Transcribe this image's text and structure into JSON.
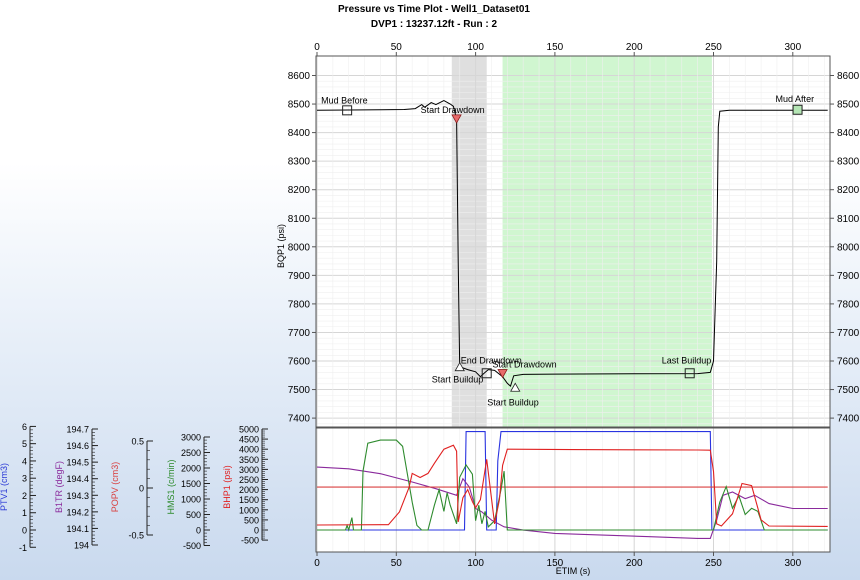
{
  "chart_data": {
    "type": "line",
    "title": "Pressure vs Time Plot - Well1_Dataset01",
    "subtitle": "DVP1 : 13237.12ft - Run : 2",
    "xlabel": "ETIM (s)",
    "xlim": [
      0,
      322
    ],
    "x_ticks": [
      0,
      50,
      100,
      150,
      200,
      250,
      300
    ],
    "main": {
      "ylabel": "BQP1 (psi)",
      "ylim": [
        7320,
        8660
      ],
      "y_ticks": [
        7400,
        7500,
        7600,
        7700,
        7800,
        7900,
        8000,
        8100,
        8200,
        8300,
        8400,
        8500,
        8600
      ],
      "grid": true,
      "shaded_regions": [
        {
          "x0": 85,
          "x1": 107,
          "color": "#d9d9d9"
        },
        {
          "x0": 117,
          "x1": 249,
          "color": "#c8f5c8"
        }
      ],
      "series": [
        {
          "color": "#000000",
          "points": [
            [
              0,
              8478
            ],
            [
              20,
              8479
            ],
            [
              40,
              8480
            ],
            [
              55,
              8481
            ],
            [
              62,
              8484
            ],
            [
              66,
              8498
            ],
            [
              68,
              8489
            ],
            [
              72,
              8505
            ],
            [
              75,
              8498
            ],
            [
              80,
              8512
            ],
            [
              84,
              8500
            ],
            [
              86,
              8492
            ],
            [
              88,
              8448
            ],
            [
              89,
              7950
            ],
            [
              90,
              7580
            ],
            [
              95,
              7570
            ],
            [
              100,
              7562
            ],
            [
              103,
              7545
            ],
            [
              105,
              7555
            ],
            [
              108,
              7570
            ],
            [
              112,
              7567
            ],
            [
              117,
              7545
            ],
            [
              120,
              7522
            ],
            [
              122,
              7512
            ],
            [
              124,
              7548
            ],
            [
              130,
              7553
            ],
            [
              150,
              7554
            ],
            [
              200,
              7555
            ],
            [
              240,
              7556
            ],
            [
              248,
              7560
            ],
            [
              250,
              7600
            ],
            [
              252,
              7950
            ],
            [
              253,
              8420
            ],
            [
              254,
              8475
            ],
            [
              260,
              8478
            ],
            [
              300,
              8478
            ],
            [
              322,
              8478
            ]
          ]
        }
      ],
      "markers": [
        {
          "type": "square",
          "label": "Mud Before",
          "x": 19,
          "y": 8478
        },
        {
          "type": "triangle-down",
          "label": "Start Drawdown",
          "x": 88,
          "y": 8448
        },
        {
          "type": "triangle-up",
          "label": "Start Buildup",
          "x": 90,
          "y": 7580
        },
        {
          "type": "square",
          "label": "End Drawdown",
          "x": 107,
          "y": 7557
        },
        {
          "type": "triangle-down",
          "label": "Start Drawdown",
          "x": 117,
          "y": 7556
        },
        {
          "type": "triangle-up",
          "label": "Start Buildup",
          "x": 125,
          "y": 7508
        },
        {
          "type": "square",
          "label": "Last Buildup",
          "x": 235,
          "y": 7557
        },
        {
          "type": "square",
          "label": "Mud After",
          "x": 303,
          "y": 8480
        }
      ]
    },
    "lower": {
      "axes": [
        {
          "name": "PTV1 (cm3)",
          "color": "#2c3bd6",
          "min": -1,
          "max": 6,
          "ticks": [
            -1,
            0,
            1,
            2,
            3,
            4,
            5,
            6
          ]
        },
        {
          "name": "B1TR (degF)",
          "color": "#8a2a9c",
          "min": 194,
          "max": 194.7,
          "ticks": [
            "194",
            "194.1",
            "194.2",
            "194.3",
            "194.4",
            "194.5",
            "194.6",
            "194.7"
          ]
        },
        {
          "name": "POPV (cm3)",
          "color": "#d94040",
          "min": -0.6,
          "max": 0.6,
          "ticks": [
            "-0.5",
            "0",
            "0.5"
          ]
        },
        {
          "name": "HMS1 (c/min)",
          "color": "#2e8b2e",
          "min": -500,
          "max": 3200,
          "ticks": [
            "-500",
            "0",
            "500",
            "1000",
            "1500",
            "2000",
            "2500",
            "3000"
          ]
        },
        {
          "name": "BHP1 (psi)",
          "color": "#e02020",
          "min": -500,
          "max": 5000,
          "ticks": [
            "-500",
            "0",
            "500",
            "1000",
            "1500",
            "2000",
            "2500",
            "3000",
            "3500",
            "4000",
            "4500",
            "5000"
          ]
        }
      ],
      "series": [
        {
          "axis": "PTV1 (cm3)",
          "color": "#2a34e0",
          "points": [
            [
              0,
              0
            ],
            [
              93,
              0
            ],
            [
              94,
              5.7
            ],
            [
              106,
              5.7
            ],
            [
              107,
              0
            ],
            [
              113,
              0
            ],
            [
              114,
              4
            ],
            [
              116,
              5.7
            ],
            [
              248,
              5.7
            ],
            [
              249,
              0
            ],
            [
              322,
              0
            ]
          ]
        },
        {
          "axis": "B1TR (degF)",
          "color": "#8a2a9c",
          "points": [
            [
              0,
              194.47
            ],
            [
              20,
              194.46
            ],
            [
              40,
              194.43
            ],
            [
              60,
              194.38
            ],
            [
              75,
              194.34
            ],
            [
              88,
              194.3
            ],
            [
              92,
              194.4
            ],
            [
              96,
              194.35
            ],
            [
              100,
              194.22
            ],
            [
              104,
              194.2
            ],
            [
              110,
              194.15
            ],
            [
              118,
              194.11
            ],
            [
              130,
              194.09
            ],
            [
              150,
              194.07
            ],
            [
              180,
              194.06
            ],
            [
              210,
              194.05
            ],
            [
              240,
              194.04
            ],
            [
              248,
              194.04
            ],
            [
              252,
              194.15
            ],
            [
              256,
              194.3
            ],
            [
              262,
              194.32
            ],
            [
              270,
              194.28
            ],
            [
              276,
              194.3
            ],
            [
              285,
              194.25
            ],
            [
              300,
              194.22
            ],
            [
              322,
              194.22
            ]
          ]
        },
        {
          "axis": "POPV (cm3)",
          "color": "#d94040",
          "points": [
            [
              0,
              0.01
            ],
            [
              322,
              0.01
            ]
          ]
        },
        {
          "axis": "HMS1 (c/min)",
          "color": "#2e8b2e",
          "points": [
            [
              0,
              0
            ],
            [
              18,
              0
            ],
            [
              19,
              150
            ],
            [
              20,
              0
            ],
            [
              22,
              400
            ],
            [
              23,
              0
            ],
            [
              28,
              0
            ],
            [
              29,
              1900
            ],
            [
              32,
              2800
            ],
            [
              40,
              2900
            ],
            [
              50,
              2900
            ],
            [
              54,
              2700
            ],
            [
              57,
              1800
            ],
            [
              60,
              900
            ],
            [
              63,
              150
            ],
            [
              66,
              0
            ],
            [
              70,
              0
            ],
            [
              74,
              800
            ],
            [
              77,
              1300
            ],
            [
              80,
              600
            ],
            [
              82,
              1200
            ],
            [
              84,
              800
            ],
            [
              88,
              200
            ],
            [
              90,
              1700
            ],
            [
              94,
              2100
            ],
            [
              98,
              1800
            ],
            [
              100,
              300
            ],
            [
              102,
              800
            ],
            [
              104,
              200
            ],
            [
              106,
              600
            ],
            [
              108,
              100
            ],
            [
              112,
              300
            ],
            [
              116,
              1300
            ],
            [
              118,
              1900
            ],
            [
              120,
              0
            ],
            [
              250,
              0
            ],
            [
              254,
              900
            ],
            [
              258,
              1400
            ],
            [
              262,
              700
            ],
            [
              266,
              1100
            ],
            [
              270,
              500
            ],
            [
              274,
              700
            ],
            [
              278,
              600
            ],
            [
              282,
              0
            ],
            [
              322,
              0
            ]
          ]
        },
        {
          "axis": "BHP1 (psi)",
          "color": "#e02020",
          "points": [
            [
              0,
              250
            ],
            [
              45,
              260
            ],
            [
              52,
              900
            ],
            [
              56,
              1700
            ],
            [
              58,
              2100
            ],
            [
              60,
              2800
            ],
            [
              65,
              2600
            ],
            [
              70,
              2800
            ],
            [
              74,
              3300
            ],
            [
              80,
              4000
            ],
            [
              86,
              4200
            ],
            [
              88,
              3900
            ],
            [
              89,
              400
            ],
            [
              92,
              1600
            ],
            [
              95,
              2000
            ],
            [
              98,
              1400
            ],
            [
              100,
              1100
            ],
            [
              103,
              1500
            ],
            [
              107,
              3500
            ],
            [
              112,
              300
            ],
            [
              115,
              1500
            ],
            [
              117,
              3200
            ],
            [
              120,
              4000
            ],
            [
              160,
              3980
            ],
            [
              200,
              3970
            ],
            [
              240,
              3960
            ],
            [
              248,
              3950
            ],
            [
              250,
              2900
            ],
            [
              252,
              300
            ],
            [
              255,
              200
            ],
            [
              262,
              800
            ],
            [
              268,
              2300
            ],
            [
              274,
              2200
            ],
            [
              280,
              500
            ],
            [
              285,
              200
            ],
            [
              322,
              180
            ]
          ]
        }
      ]
    }
  }
}
